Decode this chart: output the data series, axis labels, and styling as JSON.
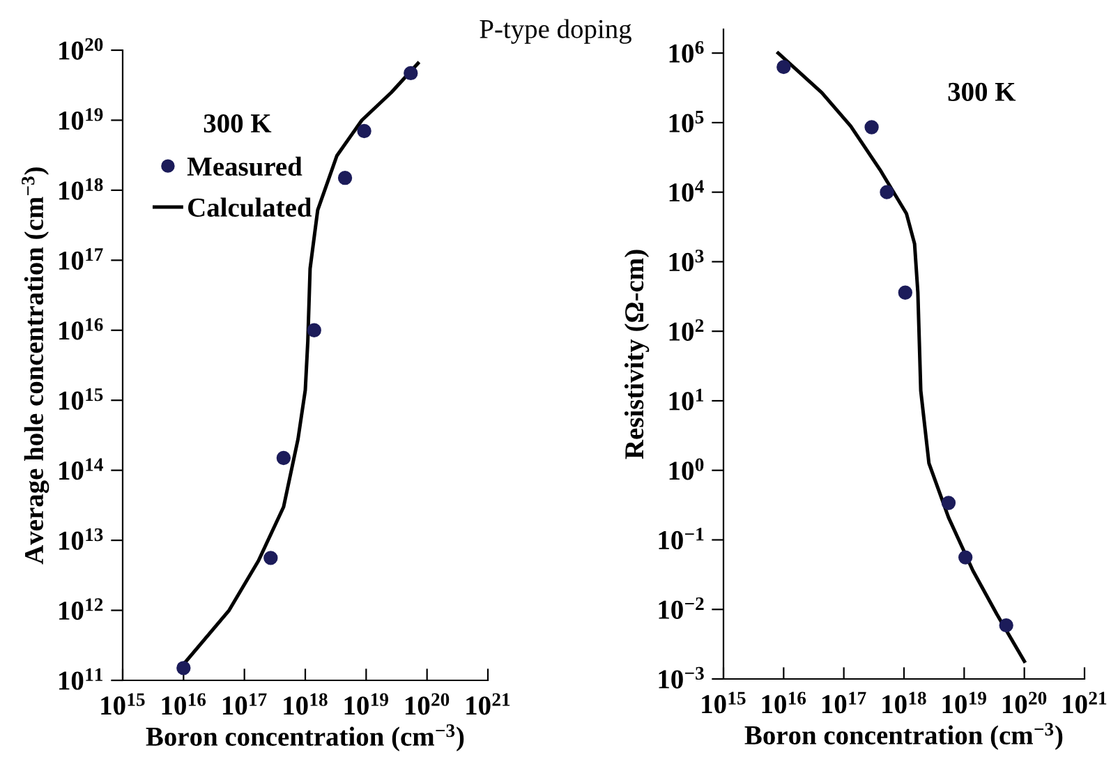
{
  "chart_data": [
    {
      "type": "scatter",
      "title": "P-type doping",
      "xlabel": "Boron concentration (cm$^{−3}$)",
      "ylabel": "Average hole concentration (cm$^{−3}$)",
      "annotations": [
        "300 K"
      ],
      "log": "xy",
      "legend": "top left",
      "xlim": [
        1000000000000000.0,
        1e+21
      ],
      "ylim": [
        100000000000.0,
        1e+20
      ],
      "xticks": [
        {
          "value": 1000000000000000.0,
          "label": "10$^{15}$"
        },
        {
          "value": 1e+16,
          "label": "10$^{16}$"
        },
        {
          "value": 1e+17,
          "label": "10$^{17}$"
        },
        {
          "value": 1e+18,
          "label": "10$^{18}$"
        },
        {
          "value": 1e+19,
          "label": "10$^{19}$"
        },
        {
          "value": 1e+20,
          "label": "10$^{20}$"
        },
        {
          "value": 1e+21,
          "label": "10$^{21}$"
        }
      ],
      "yticks": [
        {
          "value": 100000000000.0,
          "label": "10$^{11}$"
        },
        {
          "value": 1000000000000.0,
          "label": "10$^{12}$"
        },
        {
          "value": 10000000000000.0,
          "label": "10$^{13}$"
        },
        {
          "value": 100000000000000.0,
          "label": "10$^{14}$"
        },
        {
          "value": 1000000000000000.0,
          "label": "10$^{15}$"
        },
        {
          "value": 1e+16,
          "label": "10$^{16}$"
        },
        {
          "value": 1e+17,
          "label": "10$^{17}$"
        },
        {
          "value": 1e+18,
          "label": "10$^{18}$"
        },
        {
          "value": 1e+19,
          "label": "10$^{19}$"
        },
        {
          "value": 1e+20,
          "label": "10$^{20}$"
        }
      ],
      "series": [
        {
          "name": "Measured",
          "marker": "circle",
          "color": "#1c1c5a",
          "x": [
            1e+16,
            2.7e+17,
            4.4e+17,
            1.4e+18,
            4.5e+18,
            9.3e+18,
            5.4e+19
          ],
          "values": [
            150000000000.0,
            5600000000000.0,
            150000000000000.0,
            1e+16,
            1.5e+18,
            7e+18,
            4.7e+19
          ]
        },
        {
          "name": "Calculated",
          "type": "line",
          "color": "#000000",
          "x": [
            1e+16,
            5.6e+16,
            1.7e+17,
            4.4e+17,
            7.6e+17,
            1e+18,
            1.1e+18,
            1.2e+18,
            1.6e+18,
            3.3e+18,
            8.5e+18,
            2.6e+19,
            7.1e+19
          ],
          "values": [
            170000000000.0,
            1000000000000.0,
            5100000000000.0,
            30000000000000.0,
            280000000000000.0,
            1400000000000000.0,
            6900000000000000.0,
            7.6e+16,
            5.2e+17,
            3.1e+18,
            1e+19,
            2.5e+19,
            6.5e+19
          ]
        }
      ]
    },
    {
      "type": "scatter",
      "xlabel": "Boron concentration (cm$^{−3}$)",
      "ylabel": "Resistivity (Ω-cm)",
      "annotations": [
        "300 K"
      ],
      "log": "xy",
      "xlim": [
        1000000000000000.0,
        1e+21
      ],
      "ylim": [
        0.001,
        2200000.0
      ],
      "xticks": [
        {
          "value": 1000000000000000.0,
          "label": "10$^{15}$"
        },
        {
          "value": 1e+16,
          "label": "10$^{16}$"
        },
        {
          "value": 1e+17,
          "label": "10$^{17}$"
        },
        {
          "value": 1e+18,
          "label": "10$^{18}$"
        },
        {
          "value": 1e+19,
          "label": "10$^{19}$"
        },
        {
          "value": 1e+20,
          "label": "10$^{20}$"
        },
        {
          "value": 1e+21,
          "label": "10$^{21}$"
        }
      ],
      "yticks": [
        {
          "value": 0.001,
          "label": "10$^{−3}$"
        },
        {
          "value": 0.01,
          "label": "10$^{−2}$"
        },
        {
          "value": 0.1,
          "label": "10$^{−1}$"
        },
        {
          "value": 1,
          "label": "10$^{0}$"
        },
        {
          "value": 10,
          "label": "10$^{1}$"
        },
        {
          "value": 100,
          "label": "10$^{2}$"
        },
        {
          "value": 1000,
          "label": "10$^{3}$"
        },
        {
          "value": 10000.0,
          "label": "10$^{4}$"
        },
        {
          "value": 100000.0,
          "label": "10$^{5}$"
        },
        {
          "value": 1000000.0,
          "label": "10$^{6}$"
        }
      ],
      "series": [
        {
          "marker": "circle",
          "color": "#1c1c5a",
          "x": [
            1e+16,
            2.9e+17,
            5.2e+17,
            1.05e+18,
            5.5e+18,
            1.05e+19,
            5e+19
          ],
          "values": [
            630000.0,
            86000.0,
            10000.0,
            360.0,
            0.34,
            0.056,
            0.0059
          ]
        },
        {
          "type": "line",
          "color": "#000000",
          "x": [
            8100000000000000.0,
            4.3e+16,
            1.3e+17,
            4e+17,
            1.1e+18,
            1.5e+18,
            1.7e+18,
            1.9e+18,
            2.6e+18,
            5.5e+18,
            1.4e+19,
            3.5e+19,
            1e+20
          ],
          "values": [
            1000000.0,
            270000.0,
            89000.0,
            21000.0,
            4900.0,
            1800.0,
            360.0,
            14,
            1.26,
            0.21,
            0.036,
            0.0085,
            0.0018
          ]
        }
      ]
    }
  ]
}
